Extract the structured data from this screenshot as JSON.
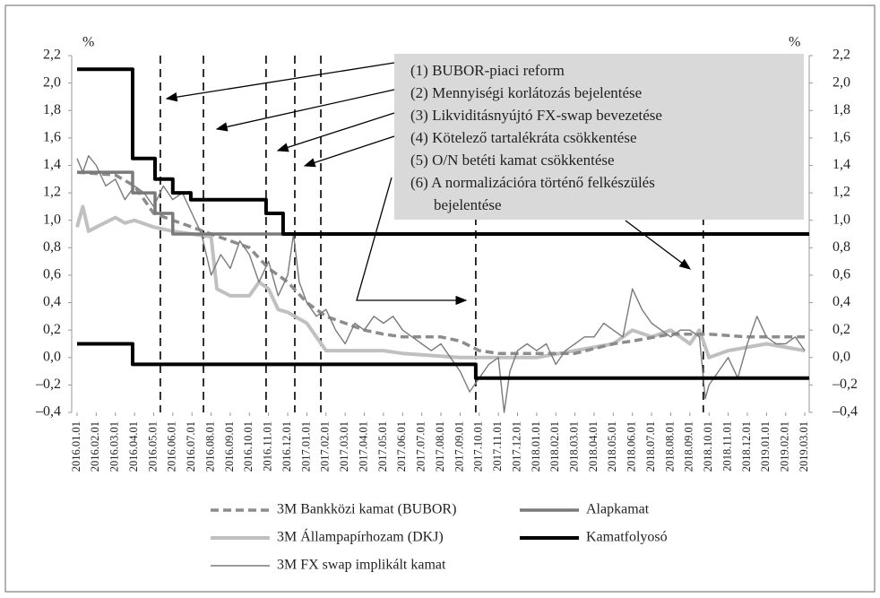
{
  "chart_data": {
    "type": "line",
    "y_unit": "%",
    "xlim": [
      -0.28,
      38.23
    ],
    "xticks": [
      {
        "value": 0,
        "label": "2016.01.01"
      },
      {
        "value": 1,
        "label": "2016.02.01"
      },
      {
        "value": 2,
        "label": "2016.03.01"
      },
      {
        "value": 3,
        "label": "2016.04.01"
      },
      {
        "value": 4,
        "label": "2016.05.01"
      },
      {
        "value": 5,
        "label": "2016.06.01"
      },
      {
        "value": 6,
        "label": "2016.07.01"
      },
      {
        "value": 7,
        "label": "2016.08.01"
      },
      {
        "value": 8,
        "label": "2016.09.01"
      },
      {
        "value": 9,
        "label": "2016.10.01"
      },
      {
        "value": 10,
        "label": "2016.11.01"
      },
      {
        "value": 11,
        "label": "2016.12.01"
      },
      {
        "value": 12,
        "label": "2017.01.01"
      },
      {
        "value": 13,
        "label": "2017.02.01"
      },
      {
        "value": 14,
        "label": "2017.03.01"
      },
      {
        "value": 15,
        "label": "2017.04.01"
      },
      {
        "value": 16,
        "label": "2017.05.01"
      },
      {
        "value": 17,
        "label": "2017.06.01"
      },
      {
        "value": 18,
        "label": "2017.07.01"
      },
      {
        "value": 19,
        "label": "2017.08.01"
      },
      {
        "value": 20,
        "label": "2017.09.01"
      },
      {
        "value": 21,
        "label": "2017.10.01"
      },
      {
        "value": 22,
        "label": "2017.11.01"
      },
      {
        "value": 23,
        "label": "2017.12.01"
      },
      {
        "value": 24,
        "label": "2018.01.01"
      },
      {
        "value": 25,
        "label": "2018.02.01"
      },
      {
        "value": 26,
        "label": "2018.03.01"
      },
      {
        "value": 27,
        "label": "2018.04.01"
      },
      {
        "value": 28,
        "label": "2018.05.01"
      },
      {
        "value": 29,
        "label": "2018.06.01"
      },
      {
        "value": 30,
        "label": "2018.07.01"
      },
      {
        "value": 31,
        "label": "2018.08.01"
      },
      {
        "value": 32,
        "label": "2018.09.01"
      },
      {
        "value": 33,
        "label": "2018.10.01"
      },
      {
        "value": 34,
        "label": "2018.11.01"
      },
      {
        "value": 35,
        "label": "2018.12.01"
      },
      {
        "value": 36,
        "label": "2019.01.01"
      },
      {
        "value": 37,
        "label": "2019.02.01"
      },
      {
        "value": 38,
        "label": "2019.03.01"
      }
    ],
    "ylim": [
      -0.4,
      2.2
    ],
    "yticks": [
      {
        "value": -0.4,
        "label": "–0,4"
      },
      {
        "value": -0.2,
        "label": "–0,2"
      },
      {
        "value": 0,
        "label": "0,0"
      },
      {
        "value": 0.2,
        "label": "0,2"
      },
      {
        "value": 0.4,
        "label": "0,4"
      },
      {
        "value": 0.6,
        "label": "0,6"
      },
      {
        "value": 0.8,
        "label": "0,8"
      },
      {
        "value": 1.0,
        "label": "1,0"
      },
      {
        "value": 1.2,
        "label": "1,2"
      },
      {
        "value": 1.4,
        "label": "1,4"
      },
      {
        "value": 1.6,
        "label": "1,6"
      },
      {
        "value": 1.8,
        "label": "1,8"
      },
      {
        "value": 2.0,
        "label": "2,0"
      },
      {
        "value": 2.2,
        "label": "2,2"
      }
    ],
    "y2lim": [
      -0.4,
      2.2
    ],
    "y2ticks": [
      {
        "value": -0.4,
        "label": "–0,4"
      },
      {
        "value": -0.2,
        "label": "–0,2"
      },
      {
        "value": 0,
        "label": "0,0"
      },
      {
        "value": 0.2,
        "label": "0,2"
      },
      {
        "value": 0.4,
        "label": "0,4"
      },
      {
        "value": 0.6,
        "label": "0,6"
      },
      {
        "value": 0.8,
        "label": "0,8"
      },
      {
        "value": 1.0,
        "label": "1,0"
      },
      {
        "value": 1.2,
        "label": "1,2"
      },
      {
        "value": 1.4,
        "label": "1,4"
      },
      {
        "value": 1.6,
        "label": "1,6"
      },
      {
        "value": 1.8,
        "label": "1,8"
      },
      {
        "value": 2.0,
        "label": "2,0"
      },
      {
        "value": 2.2,
        "label": "2,2"
      }
    ],
    "event_lines": [
      4.35,
      6.6,
      9.87,
      11.37,
      12.73,
      20.82,
      32.7
    ],
    "annotations": [
      "(1) BUBOR-piaci reform",
      "(2) Mennyiségi korlátozás bejelentése",
      "(3) Likviditásnyújtó FX-swap bevezetése",
      "(4) Kötelező tartalékráta csökkentése",
      "(5) O/N betéti kamat csökkentése",
      "(6) A normalizációra történő felkészülés",
      "bejelentése"
    ],
    "series": [
      {
        "name": "3M Bankközi kamat (BUBOR)",
        "color": "#8c8c8c",
        "width": 3.5,
        "dash": "9 5",
        "x": [
          0,
          2,
          3,
          4,
          5,
          6,
          7,
          8,
          9,
          10,
          11,
          12,
          13,
          14,
          15,
          16,
          17,
          19,
          20,
          21,
          22,
          26,
          28,
          29,
          31,
          33,
          35,
          38
        ],
        "values": [
          1.35,
          1.33,
          1.25,
          1.05,
          1.0,
          0.95,
          0.9,
          0.85,
          0.8,
          0.65,
          0.55,
          0.4,
          0.3,
          0.25,
          0.2,
          0.17,
          0.15,
          0.15,
          0.12,
          0.05,
          0.03,
          0.03,
          0.1,
          0.12,
          0.17,
          0.17,
          0.15,
          0.15
        ]
      },
      {
        "name": "Alapkamat",
        "color": "#7a7a7a",
        "width": 3.5,
        "dash": null,
        "x": [
          0,
          2.9,
          2.9,
          4.07,
          4.07,
          5.0,
          5.0,
          38.23
        ],
        "values": [
          1.35,
          1.35,
          1.2,
          1.2,
          1.05,
          1.05,
          0.9,
          0.9
        ]
      },
      {
        "name": "3M Állampapírhozam (DKJ)",
        "color": "#c0c0c0",
        "width": 4,
        "dash": null,
        "x": [
          0,
          0.3,
          0.6,
          1,
          2,
          2.5,
          3,
          4,
          5,
          6,
          7,
          7.3,
          8,
          9,
          9.5,
          10,
          10.5,
          11,
          12,
          13,
          14,
          15,
          16,
          17,
          18,
          20,
          24,
          26,
          28,
          29,
          30,
          31,
          32,
          32.5,
          33,
          34,
          36,
          38
        ],
        "values": [
          0.95,
          1.1,
          0.92,
          0.95,
          1.02,
          0.98,
          1.0,
          0.95,
          0.92,
          0.9,
          0.88,
          0.5,
          0.45,
          0.45,
          0.55,
          0.5,
          0.35,
          0.33,
          0.25,
          0.05,
          0.05,
          0.05,
          0.05,
          0.03,
          0.02,
          0.0,
          0.0,
          0.05,
          0.1,
          0.2,
          0.15,
          0.2,
          0.1,
          0.2,
          0.0,
          0.05,
          0.1,
          0.05
        ]
      },
      {
        "name": "Kamatfolyosó",
        "color": "#000000",
        "width": 4,
        "dash": null,
        "x": [
          0,
          2.9,
          2.9,
          4.07,
          4.07,
          5.0,
          5.0,
          5.94,
          5.94,
          9.87,
          9.87,
          10.76,
          10.76,
          38.23,
          null,
          0,
          2.9,
          2.9,
          20.82,
          20.82,
          38.23
        ],
        "values": [
          2.1,
          2.1,
          1.45,
          1.45,
          1.3,
          1.3,
          1.2,
          1.2,
          1.15,
          1.15,
          1.05,
          1.05,
          0.9,
          0.9,
          null,
          0.1,
          0.1,
          -0.05,
          -0.05,
          -0.15,
          -0.15
        ]
      },
      {
        "name": "3M FX swap implikált kamat",
        "color": "#7a7a7a",
        "width": 1.4,
        "dash": null,
        "x": [
          0,
          0.3,
          0.6,
          1,
          1.5,
          2,
          2.5,
          3,
          3.5,
          4,
          4.5,
          5,
          5.5,
          6,
          6.5,
          7,
          7.5,
          8,
          8.5,
          9,
          9.5,
          10,
          10.5,
          11,
          11.3,
          11.6,
          12,
          12.5,
          13,
          13.5,
          14,
          14.5,
          15,
          15.5,
          16,
          16.5,
          17,
          17.5,
          18,
          18.5,
          19,
          19.5,
          20,
          20.5,
          21,
          21.5,
          22,
          22.3,
          22.6,
          23,
          23.5,
          24,
          24.5,
          25,
          25.5,
          26,
          26.5,
          27,
          27.5,
          28,
          28.5,
          29,
          29.5,
          30,
          30.5,
          31,
          31.5,
          32,
          32.5,
          32.8,
          33,
          33.5,
          34,
          34.5,
          35,
          35.5,
          36,
          36.5,
          37,
          37.5,
          38
        ],
        "values": [
          1.45,
          1.35,
          1.47,
          1.4,
          1.25,
          1.3,
          1.15,
          1.25,
          1.2,
          1.1,
          1.25,
          1.15,
          1.2,
          1.05,
          0.9,
          0.6,
          0.75,
          0.65,
          0.85,
          0.75,
          0.55,
          0.7,
          0.45,
          0.6,
          0.9,
          0.55,
          0.4,
          0.3,
          0.35,
          0.2,
          0.1,
          0.25,
          0.2,
          0.3,
          0.25,
          0.3,
          0.2,
          0.15,
          0.1,
          0.05,
          0.1,
          0.0,
          -0.1,
          -0.25,
          -0.15,
          -0.05,
          0.0,
          -0.4,
          -0.1,
          0.05,
          0.1,
          0.05,
          0.1,
          -0.05,
          0.05,
          0.1,
          0.15,
          0.15,
          0.25,
          0.2,
          0.15,
          0.5,
          0.35,
          0.25,
          0.2,
          0.15,
          0.2,
          0.2,
          0.15,
          -0.3,
          -0.2,
          -0.1,
          0.0,
          -0.15,
          0.1,
          0.3,
          0.15,
          0.1,
          0.1,
          0.15,
          0.05
        ]
      }
    ]
  }
}
